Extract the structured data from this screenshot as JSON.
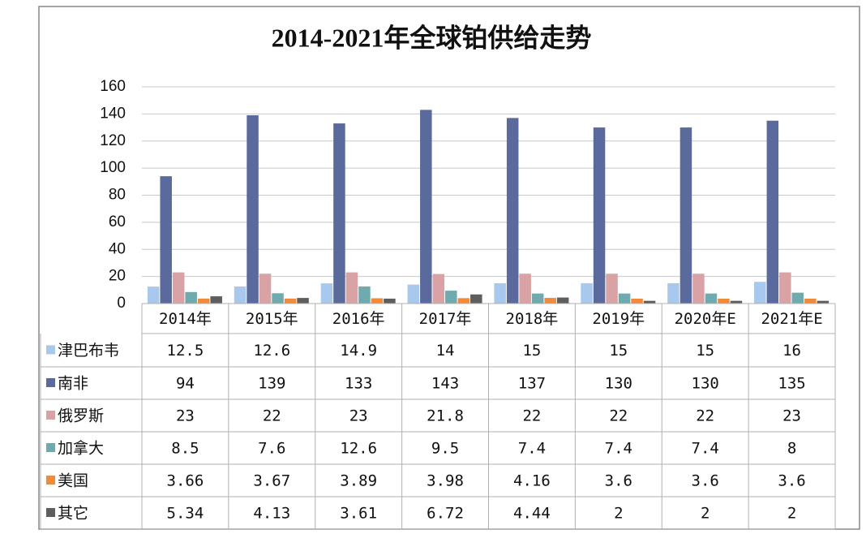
{
  "chart_data": {
    "type": "bar",
    "title": "2014-2021年全球铂供给走势",
    "categories": [
      "2014年",
      "2015年",
      "2016年",
      "2017年",
      "2018年",
      "2019年",
      "2020年E",
      "2021年E"
    ],
    "series": [
      {
        "name": "津巴布韦",
        "color": "#a8c8ee",
        "values": [
          12.5,
          12.6,
          14.9,
          14,
          15,
          15,
          15,
          16
        ]
      },
      {
        "name": "南非",
        "color": "#5a6a9c",
        "values": [
          94,
          139,
          133,
          143,
          137,
          130,
          130,
          135
        ]
      },
      {
        "name": "俄罗斯",
        "color": "#d9a2a4",
        "values": [
          23,
          22,
          23,
          21.8,
          22,
          22,
          22,
          23
        ]
      },
      {
        "name": "加拿大",
        "color": "#6eaaae",
        "values": [
          8.5,
          7.6,
          12.6,
          9.5,
          7.4,
          7.4,
          7.4,
          8
        ]
      },
      {
        "name": "美国",
        "color": "#f28a3c",
        "values": [
          3.66,
          3.67,
          3.89,
          3.98,
          4.16,
          3.6,
          3.6,
          3.6
        ]
      },
      {
        "name": "其它",
        "color": "#5e5e5e",
        "values": [
          5.34,
          4.13,
          3.61,
          6.72,
          4.44,
          2,
          2,
          2
        ]
      }
    ],
    "ylim": [
      0,
      160
    ],
    "yticks": [
      0,
      20,
      40,
      60,
      80,
      100,
      120,
      140,
      160
    ],
    "grid": true
  }
}
